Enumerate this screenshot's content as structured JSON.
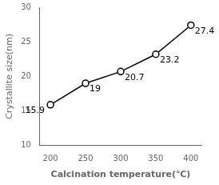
{
  "chart_data": {
    "type": "line",
    "x": [
      200,
      250,
      300,
      350,
      400
    ],
    "values": [
      15.9,
      19,
      20.7,
      23.2,
      27.4
    ],
    "xlabel": "Calcination temperature(℃)",
    "ylabel": "Crystallite size(nm)",
    "xlim": [
      185,
      415
    ],
    "xticks": [
      200,
      250,
      300,
      350,
      400
    ],
    "ylim": [
      10,
      30
    ],
    "yticks": [
      10,
      15,
      20,
      25,
      30
    ],
    "color": "#000000",
    "marker": "circle",
    "data_labels": true,
    "grid": false
  }
}
